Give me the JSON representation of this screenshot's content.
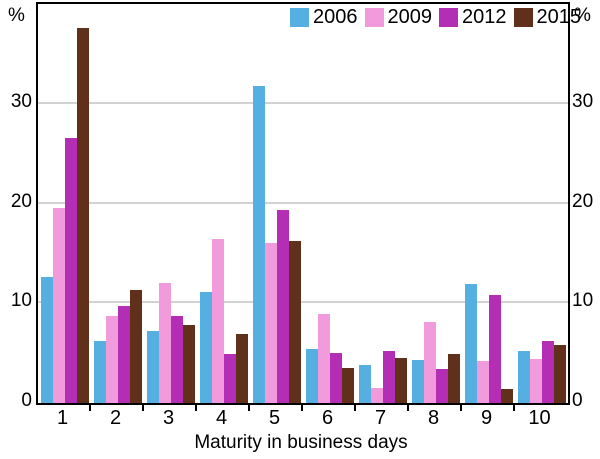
{
  "figure": {
    "left_unit": "%",
    "right_unit": "%",
    "xlabel": "Maturity in business days"
  },
  "legend": {
    "items": [
      {
        "label": "2006",
        "color": "#55afe1"
      },
      {
        "label": "2009",
        "color": "#f29bdc"
      },
      {
        "label": "2012",
        "color": "#b32db5"
      },
      {
        "label": "2015",
        "color": "#60301a"
      }
    ]
  },
  "chart_data": {
    "type": "bar",
    "title": "",
    "xlabel": "Maturity in business days",
    "ylabel": "%",
    "categories": [
      "1",
      "2",
      "3",
      "4",
      "5",
      "6",
      "7",
      "8",
      "9",
      "10"
    ],
    "series": [
      {
        "name": "2006",
        "color": "#55afe1",
        "values": [
          12.6,
          6.2,
          7.2,
          11.1,
          31.8,
          5.4,
          3.8,
          4.3,
          11.9,
          5.2
        ]
      },
      {
        "name": "2009",
        "color": "#f29bdc",
        "values": [
          19.6,
          8.7,
          12.0,
          16.4,
          16.0,
          8.9,
          1.5,
          8.1,
          4.2,
          4.4
        ]
      },
      {
        "name": "2012",
        "color": "#b32db5",
        "values": [
          26.6,
          9.7,
          8.7,
          4.9,
          19.4,
          5.0,
          5.2,
          3.4,
          10.8,
          6.2
        ]
      },
      {
        "name": "2015",
        "color": "#60301a",
        "values": [
          37.6,
          11.3,
          7.8,
          6.9,
          16.2,
          3.5,
          4.5,
          4.9,
          1.4,
          5.8
        ]
      }
    ],
    "ylim": [
      0,
      40
    ],
    "yticks": [
      0,
      10,
      20,
      30
    ],
    "grid": true,
    "legend_position": "top-right"
  }
}
